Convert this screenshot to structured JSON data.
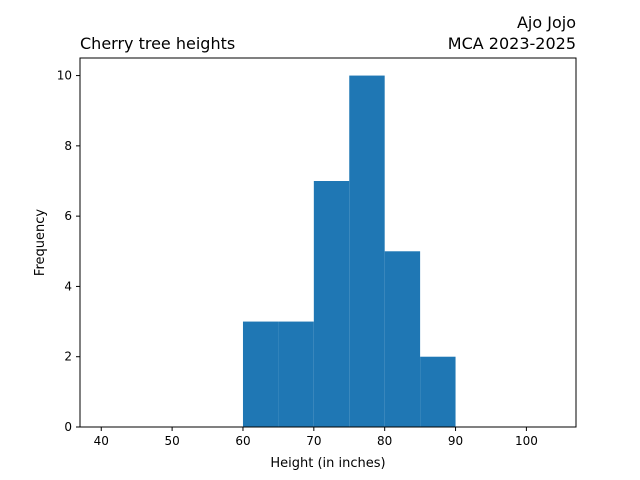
{
  "chart_data": {
    "type": "bar",
    "subtype": "histogram",
    "title": "Cherry tree heights",
    "title_right_line1": "Ajo Jojo",
    "title_right_line2": "MCA 2023-2025",
    "xlabel": "Height (in inches)",
    "ylabel": "Frequency",
    "xlim": [
      37,
      107
    ],
    "ylim": [
      0,
      10.5
    ],
    "xticks": [
      40,
      50,
      60,
      70,
      80,
      90,
      100
    ],
    "yticks": [
      0,
      2,
      4,
      6,
      8,
      10
    ],
    "bins": [
      {
        "start": 60,
        "end": 65,
        "count": 3
      },
      {
        "start": 65,
        "end": 70,
        "count": 3
      },
      {
        "start": 70,
        "end": 75,
        "count": 7
      },
      {
        "start": 75,
        "end": 80,
        "count": 10
      },
      {
        "start": 80,
        "end": 85,
        "count": 5
      },
      {
        "start": 85,
        "end": 90,
        "count": 2
      }
    ],
    "bar_color": "#1f77b4",
    "grid": false,
    "legend": "none"
  }
}
